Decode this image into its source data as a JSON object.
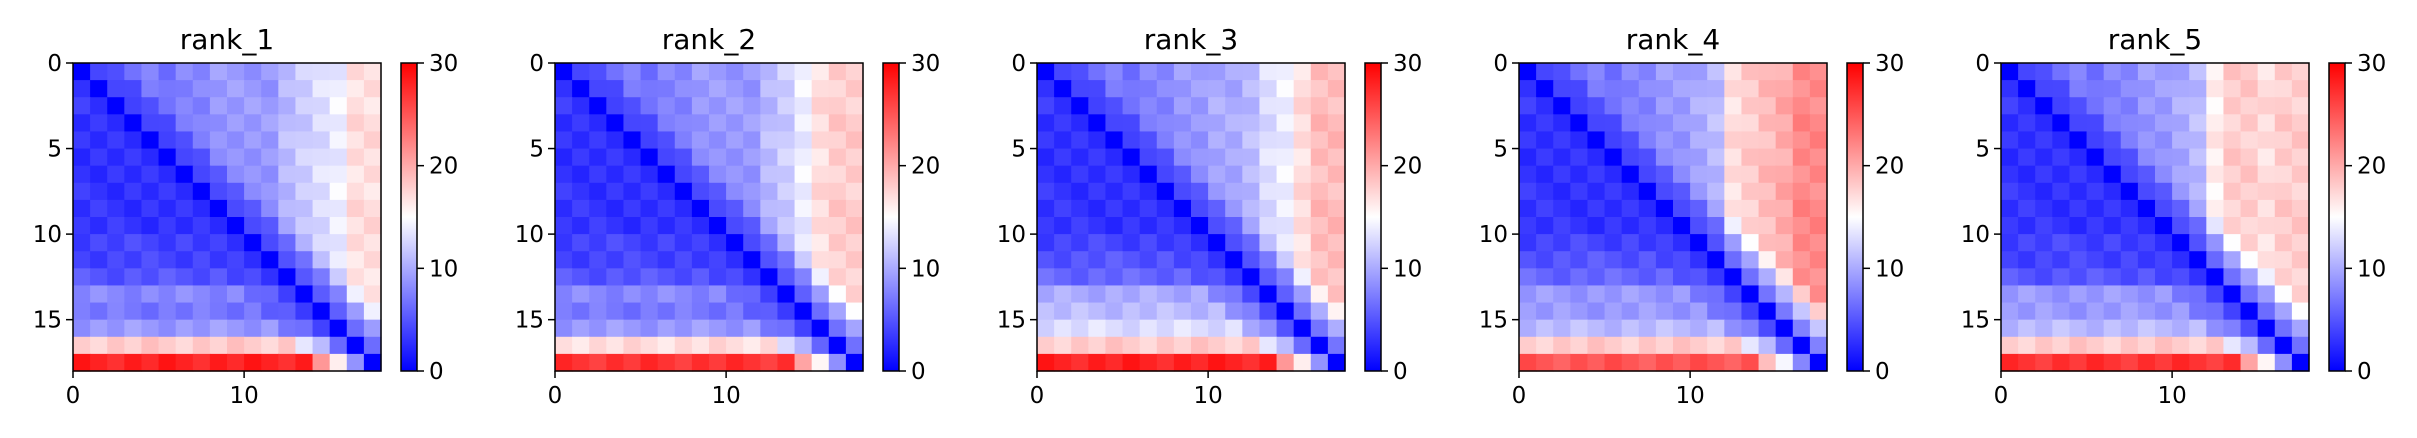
{
  "chart_data": {
    "type": "heatmap",
    "colormap": "bwr",
    "vmin": 0,
    "vmax": 30,
    "colorbar_ticks": [
      0,
      10,
      20,
      30
    ],
    "x_ticks": [
      0,
      10
    ],
    "y_ticks": [
      0,
      5,
      10,
      15
    ],
    "grid_size": 18,
    "panels": [
      {
        "title": "rank_1",
        "row_profile": [
          8,
          5,
          4,
          3,
          3,
          3,
          3,
          3,
          3,
          3,
          4,
          4,
          5,
          8,
          7,
          9,
          18,
          28
        ],
        "col_profile": [
          10,
          8,
          8,
          7,
          8,
          7,
          8,
          8,
          9,
          9,
          9,
          9,
          11,
          12,
          13,
          14,
          17,
          17
        ]
      },
      {
        "title": "rank_2",
        "row_profile": [
          8,
          5,
          4,
          3,
          3,
          3,
          3,
          3,
          3,
          3,
          4,
          4,
          5,
          8,
          7,
          9,
          17,
          27
        ],
        "col_profile": [
          10,
          8,
          8,
          7,
          8,
          7,
          8,
          8,
          9,
          9,
          9,
          9,
          11,
          12,
          14,
          17,
          18,
          18
        ]
      },
      {
        "title": "rank_3",
        "row_profile": [
          8,
          5,
          4,
          3,
          3,
          3,
          3,
          3,
          3,
          3,
          4,
          5,
          6,
          10,
          11,
          13,
          18,
          28
        ],
        "col_profile": [
          10,
          8,
          8,
          7,
          8,
          7,
          8,
          8,
          9,
          9,
          10,
          10,
          11,
          13,
          14,
          17,
          19,
          19
        ]
      },
      {
        "title": "rank_4",
        "row_profile": [
          8,
          5,
          4,
          3,
          3,
          3,
          3,
          3,
          3,
          3,
          4,
          5,
          6,
          9,
          9,
          11,
          18,
          25
        ],
        "col_profile": [
          10,
          8,
          8,
          7,
          8,
          7,
          8,
          8,
          9,
          9,
          10,
          11,
          17,
          18,
          19,
          20,
          22,
          22
        ]
      },
      {
        "title": "rank_5",
        "row_profile": [
          8,
          5,
          4,
          3,
          3,
          3,
          3,
          3,
          3,
          3,
          4,
          4,
          5,
          9,
          9,
          11,
          18,
          27
        ],
        "col_profile": [
          10,
          8,
          8,
          7,
          8,
          7,
          8,
          8,
          9,
          9,
          10,
          11,
          16,
          18,
          18,
          17,
          18,
          18
        ]
      }
    ]
  }
}
